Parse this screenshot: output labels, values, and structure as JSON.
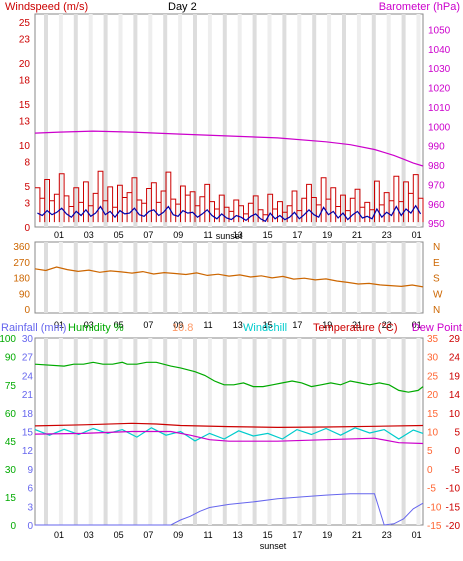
{
  "colors": {
    "windspeed": "#cc0000",
    "wind_avg": "#0000aa",
    "barometer": "#cc00cc",
    "direction": "#cc6600",
    "rainfall": "#6666ee",
    "humidity": "#00aa00",
    "temperature": "#cc0000",
    "windchill": "#00cccc",
    "dewpoint": "#cc00cc",
    "heat_index": "#ff9966",
    "grid_odd": "#dddddd",
    "grid_even": "#eeeeee"
  },
  "chart_data": [
    {
      "type": "line",
      "title": "Day 2",
      "ylabel_left": "Windspeed (m/s)",
      "ylabel_right": "Barometer (hPa)",
      "xlabel": "sunset",
      "x_ticks": [
        "01",
        "03",
        "05",
        "07",
        "09",
        "11",
        "13",
        "15",
        "17",
        "19",
        "21",
        "23",
        "01"
      ],
      "y_left_ticks": [
        0,
        3,
        5,
        8,
        10,
        13,
        15,
        18,
        20,
        23,
        25
      ],
      "y_left_range": [
        0,
        26
      ],
      "y_right_ticks": [
        950,
        960,
        970,
        980,
        990,
        1000,
        1010,
        1020,
        1030,
        1040,
        1050
      ],
      "y_right_range": [
        948,
        1058
      ],
      "series": [
        {
          "name": "Windspeed (m/s)",
          "kind": "gust",
          "values": [
            4.8,
            3.5,
            5.8,
            3.2,
            4.0,
            6.5,
            3.8,
            2.5,
            4.8,
            3.0,
            5.5,
            2.6,
            4.1,
            6.8,
            3.2,
            4.9,
            2.4,
            5.1,
            3.6,
            4.2,
            6.0,
            3.3,
            2.9,
            4.7,
            5.4,
            3.0,
            4.4,
            6.7,
            3.4,
            2.8,
            5.0,
            3.9,
            4.3,
            2.6,
            3.7,
            5.2,
            3.1,
            2.2,
            3.9,
            2.4,
            1.9,
            3.3,
            2.6,
            1.6,
            2.9,
            3.8,
            2.1,
            1.5,
            4.0,
            2.2,
            3.1,
            1.8,
            2.6,
            4.4,
            2.0,
            3.5,
            5.2,
            3.6,
            2.7,
            6.0,
            3.4,
            4.8,
            2.5,
            3.9,
            2.0,
            3.5,
            4.6,
            2.4,
            3.0,
            2.1,
            5.6,
            2.7,
            4.2,
            3.2,
            6.2,
            3.1,
            5.5,
            4.1,
            6.4,
            3.5
          ]
        },
        {
          "name": "Average windspeed (m/s)",
          "kind": "avg",
          "values": [
            1.7,
            1.4,
            2.0,
            1.5,
            1.8,
            2.3,
            1.6,
            1.2,
            1.9,
            1.4,
            2.1,
            1.3,
            1.7,
            2.5,
            1.5,
            1.9,
            1.2,
            2.0,
            1.6,
            1.7,
            2.3,
            1.5,
            1.3,
            1.9,
            2.1,
            1.4,
            1.8,
            2.5,
            1.5,
            1.3,
            2.0,
            1.7,
            1.8,
            1.2,
            1.6,
            2.1,
            1.4,
            1.0,
            1.6,
            1.1,
            0.9,
            1.4,
            1.2,
            0.8,
            1.3,
            1.6,
            1.0,
            0.7,
            1.7,
            1.0,
            1.4,
            0.9,
            1.2,
            1.8,
            1.0,
            1.5,
            2.1,
            1.5,
            1.2,
            2.4,
            1.5,
            1.9,
            1.1,
            1.7,
            0.9,
            1.5,
            1.9,
            1.1,
            1.3,
            1.0,
            2.2,
            1.2,
            1.8,
            1.4,
            2.5,
            1.4,
            2.2,
            1.7,
            2.6,
            1.6
          ]
        },
        {
          "name": "Barometer (hPa)",
          "axis": "right",
          "x": [
            0,
            5,
            12,
            20,
            30,
            40,
            50,
            60,
            65,
            70,
            72,
            74,
            76,
            78,
            80
          ],
          "values": [
            996.5,
            997,
            997.5,
            997,
            996,
            995,
            994,
            992,
            990.5,
            988,
            986.5,
            985,
            983,
            981,
            979.5
          ]
        }
      ]
    },
    {
      "type": "line",
      "title": "",
      "ylabel_right": "",
      "y_left_ticks": [
        0,
        90,
        180,
        270,
        360
      ],
      "y_left_range": [
        0,
        360
      ],
      "y_right_ticks": [
        "N",
        "W",
        "S",
        "E",
        "N"
      ],
      "x_ticks": [
        "01",
        "03",
        "05",
        "07",
        "09",
        "11",
        "13",
        "15",
        "17",
        "19",
        "21",
        "23",
        "01"
      ],
      "series": [
        {
          "name": "Wind direction",
          "values": [
            230,
            220,
            240,
            225,
            215,
            222,
            210,
            218,
            212,
            205,
            214,
            200,
            208,
            203,
            197,
            206,
            192,
            199,
            188,
            195,
            183,
            190,
            178,
            186,
            171,
            176,
            166,
            172,
            160,
            152,
            143,
            146,
            138,
            134,
            129,
            137,
            126
          ]
        }
      ]
    },
    {
      "type": "line",
      "title": "",
      "xlabel": "sunset",
      "legend": [
        "Rainfall (mm)",
        "Humidity %",
        "10.8",
        "Windchill",
        "Temperature (°C)",
        "Dew Point"
      ],
      "x_ticks": [
        "01",
        "03",
        "05",
        "07",
        "09",
        "11",
        "13",
        "15",
        "17",
        "19",
        "21",
        "23",
        "01"
      ],
      "humidity_ticks": [
        0,
        15,
        30,
        45,
        60,
        75,
        90,
        100
      ],
      "rainfall_ticks": [
        0,
        3,
        6,
        9,
        12,
        15,
        18,
        21,
        24,
        27,
        30
      ],
      "temp_ticks_inner": [
        -15,
        -10,
        -5,
        0,
        5,
        10,
        15,
        20,
        25,
        30,
        35
      ],
      "temp_ticks_outer": [
        -20,
        -15,
        -10,
        -5,
        0,
        5,
        10,
        14,
        19,
        24,
        29
      ],
      "series": [
        {
          "name": "Humidity %",
          "axis": "humidity",
          "x": [
            0,
            6,
            8,
            10,
            12,
            14,
            16,
            18,
            19,
            21,
            23,
            25,
            28,
            30,
            33,
            35,
            37,
            38,
            39,
            41,
            43,
            45,
            47,
            49,
            51,
            53,
            55,
            57,
            59,
            61,
            63,
            65,
            67,
            69,
            71,
            73,
            75,
            77,
            79,
            80
          ],
          "values": [
            86,
            85,
            86,
            86,
            87,
            86,
            86,
            87,
            86,
            86,
            87,
            87,
            85,
            84,
            82,
            80,
            77,
            76,
            75,
            75,
            76,
            74,
            74,
            75,
            76,
            77,
            76,
            74,
            75,
            76,
            75,
            77,
            76,
            75,
            76,
            75,
            72,
            71,
            72,
            74
          ]
        },
        {
          "name": "Temperature (°C)",
          "axis": "temp_inner",
          "x": [
            0,
            10,
            20,
            25,
            30,
            40,
            50,
            60,
            70,
            80
          ],
          "values": [
            11.5,
            11.8,
            12.2,
            12,
            11.6,
            11.3,
            11.1,
            11.2,
            11.4,
            11.6
          ]
        },
        {
          "name": "Windchill",
          "axis": "temp_inner",
          "x": [
            0,
            3,
            6,
            9,
            12,
            15,
            18,
            21,
            24,
            27,
            30,
            33,
            36,
            39,
            42,
            45,
            48,
            51,
            54,
            57,
            60,
            63,
            66,
            69,
            72,
            75,
            78,
            80
          ],
          "values": [
            10.5,
            9,
            10.6,
            9.2,
            10.8,
            9.5,
            10.5,
            8.5,
            11,
            9,
            10,
            7.5,
            9.5,
            8,
            10.2,
            8.8,
            9.5,
            8,
            10.5,
            9.2,
            10.8,
            9,
            11,
            9.6,
            10.5,
            8,
            10.4,
            9.5
          ]
        },
        {
          "name": "Dew Point",
          "axis": "temp_inner",
          "x": [
            0,
            10,
            20,
            28,
            32,
            36,
            40,
            50,
            60,
            70,
            75,
            80
          ],
          "values": [
            9.3,
            9.5,
            10,
            10,
            9,
            7.8,
            7.4,
            7.4,
            7.8,
            8.2,
            7,
            6.8
          ]
        },
        {
          "name": "Rainfall (mm)",
          "axis": "rainfall",
          "x": [
            0,
            28,
            30,
            32,
            34,
            36,
            40,
            45,
            50,
            55,
            60,
            65,
            70,
            72,
            74,
            76,
            78,
            80
          ],
          "values": [
            0,
            0,
            0.8,
            1.4,
            2.2,
            2.8,
            3.3,
            3.7,
            4.2,
            4.5,
            4.8,
            5.0,
            5.0,
            0,
            0.2,
            1,
            2.6,
            3.5
          ]
        }
      ]
    }
  ]
}
